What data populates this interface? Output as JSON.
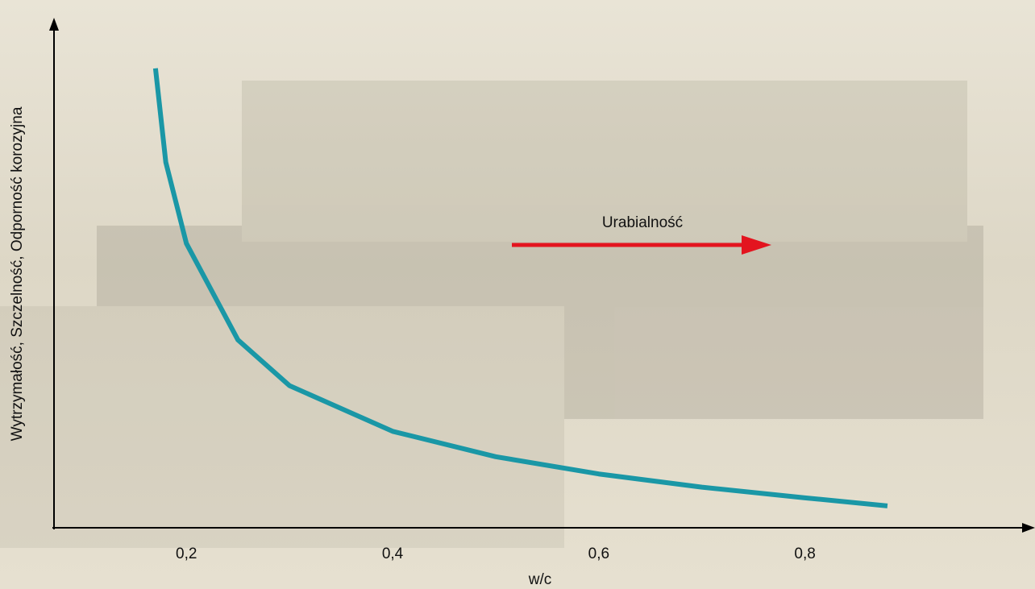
{
  "chart_data": {
    "type": "line",
    "x_label": "w/c",
    "y_label": "Wytrzymałość, Szczelność, Odporność korozyjna",
    "annotation": "Urabialność",
    "x": [
      0.17,
      0.18,
      0.2,
      0.25,
      0.3,
      0.4,
      0.5,
      0.6,
      0.7,
      0.8,
      0.88
    ],
    "series": [
      {
        "color": "#1a97a6",
        "values": [
          90.5,
          72,
          56,
          37,
          28,
          19,
          14,
          10.6,
          8,
          5.9,
          4.3
        ]
      }
    ],
    "xlim": [
      0.07,
      1.02
    ],
    "ylim": [
      0,
      100
    ],
    "xticks": [
      {
        "value": 0.2,
        "label": "0,2"
      },
      {
        "value": 0.4,
        "label": "0,4"
      },
      {
        "value": 0.6,
        "label": "0,6"
      },
      {
        "value": 0.8,
        "label": "0,8"
      }
    ],
    "annotation_color": "#e3141f"
  }
}
